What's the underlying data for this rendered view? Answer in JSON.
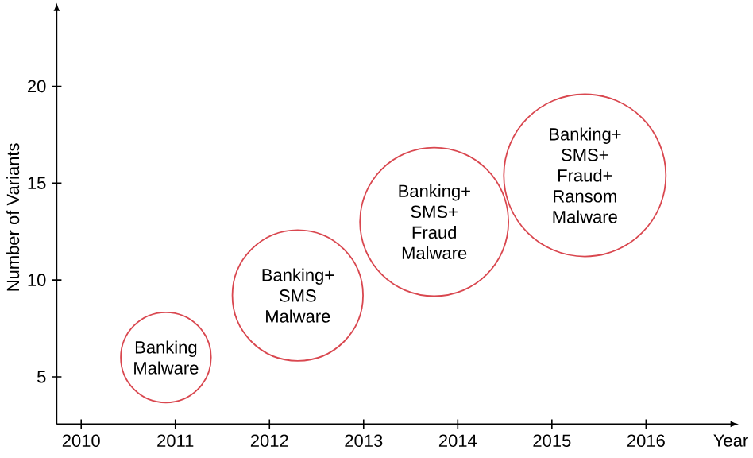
{
  "chart_data": {
    "type": "bubble",
    "xlabel": "Year",
    "ylabel": "Number of Variants",
    "x": [
      2010.9,
      2012.3,
      2013.75,
      2015.35
    ],
    "series": [
      {
        "color": "#d9474f",
        "values": [
          6,
          9.2,
          13,
          15.4
        ],
        "sizes": [
          0.31,
          0.65,
          0.84,
          1
        ]
      }
    ],
    "xlim": [
      2009.74,
      2016.9
    ],
    "ylim": [
      2.56,
      23.9
    ],
    "xticks": [
      2010,
      2011,
      2012,
      2013,
      2014,
      2015,
      2016
    ],
    "yticks": [
      5,
      10,
      15,
      20
    ],
    "annotations": [
      {
        "text": "Banking Malware",
        "x": 2010.9,
        "y": 6
      },
      {
        "text": "Banking+ SMS Malware",
        "x": 2012.3,
        "y": 9.2
      },
      {
        "text": "Banking+ SMS+ Fraud Malware",
        "x": 2013.75,
        "y": 13
      },
      {
        "text": "Banking+ SMS+ Fraud+ Ransom Malware",
        "x": 2015.35,
        "y": 15.4
      }
    ],
    "grid": false
  }
}
